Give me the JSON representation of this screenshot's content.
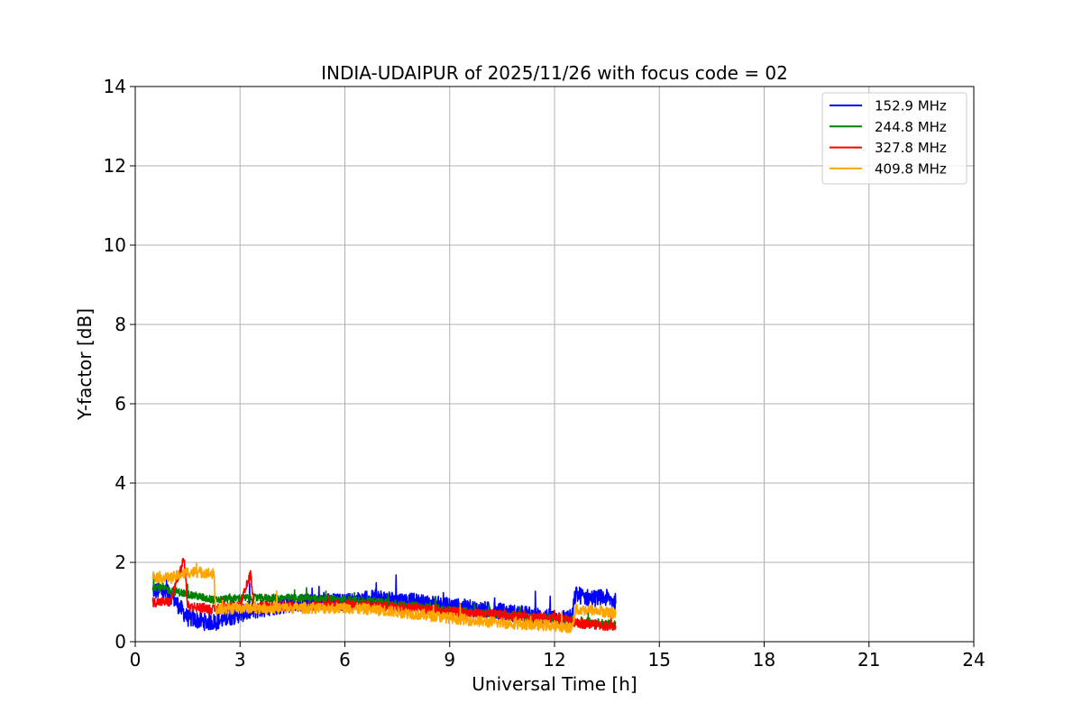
{
  "chart_data": {
    "type": "line",
    "title": "INDIA-UDAIPUR of 2025/11/26 with focus code = 02",
    "xlabel": "Universal Time [h]",
    "ylabel": "Y-factor [dB]",
    "xlim": [
      0,
      24
    ],
    "ylim": [
      0,
      14
    ],
    "xticks": [
      0,
      3,
      6,
      9,
      12,
      15,
      18,
      21,
      24
    ],
    "yticks": [
      0,
      2,
      4,
      6,
      8,
      10,
      12,
      14
    ],
    "grid": true,
    "legend_position": "top-right",
    "series": [
      {
        "name": "152.9 MHz",
        "color": "#0000ff",
        "x": [
          0.5,
          1.0,
          1.5,
          2.0,
          2.3,
          3.0,
          4.0,
          5.0,
          6.0,
          7.0,
          8.0,
          9.0,
          10.0,
          11.0,
          12.0,
          12.5,
          12.6,
          13.0,
          13.5,
          13.75
        ],
        "values": [
          1.3,
          1.2,
          0.6,
          0.5,
          0.5,
          0.7,
          0.9,
          1.0,
          1.0,
          1.1,
          1.0,
          0.9,
          0.8,
          0.7,
          0.6,
          0.6,
          1.2,
          1.1,
          1.1,
          1.0
        ]
      },
      {
        "name": "244.8 MHz",
        "color": "#008000",
        "x": [
          0.5,
          1.0,
          1.5,
          2.0,
          2.3,
          3.0,
          4.0,
          5.0,
          6.0,
          7.0,
          8.0,
          9.0,
          10.0,
          11.0,
          12.0,
          12.5,
          12.6,
          13.0,
          13.5,
          13.75
        ],
        "values": [
          1.4,
          1.3,
          1.2,
          1.1,
          1.05,
          1.1,
          1.1,
          1.1,
          1.05,
          1.0,
          0.9,
          0.8,
          0.7,
          0.65,
          0.6,
          0.55,
          0.5,
          0.5,
          0.45,
          0.45
        ]
      },
      {
        "name": "327.8 MHz",
        "color": "#ff0000",
        "x": [
          0.5,
          1.0,
          1.4,
          1.5,
          2.0,
          2.3,
          3.0,
          3.3,
          3.4,
          4.0,
          5.0,
          6.0,
          7.0,
          8.0,
          9.0,
          10.0,
          11.0,
          12.0,
          12.5,
          12.6,
          13.0,
          13.5,
          13.75
        ],
        "values": [
          1.0,
          1.0,
          2.1,
          0.9,
          0.85,
          0.8,
          0.9,
          1.7,
          0.9,
          0.9,
          0.9,
          0.95,
          0.9,
          0.85,
          0.75,
          0.7,
          0.65,
          0.6,
          0.55,
          0.45,
          0.45,
          0.4,
          0.4
        ]
      },
      {
        "name": "409.8 MHz",
        "color": "#ffa500",
        "x": [
          0.5,
          1.0,
          1.5,
          2.0,
          2.25,
          2.3,
          3.0,
          4.0,
          5.0,
          6.0,
          7.0,
          8.0,
          9.0,
          10.0,
          11.0,
          12.0,
          12.5,
          12.6,
          13.0,
          13.5,
          13.75
        ],
        "values": [
          1.65,
          1.6,
          1.75,
          1.75,
          1.7,
          0.8,
          0.85,
          0.85,
          0.85,
          0.85,
          0.8,
          0.7,
          0.6,
          0.5,
          0.45,
          0.4,
          0.35,
          0.8,
          0.8,
          0.75,
          0.7
        ]
      }
    ]
  }
}
